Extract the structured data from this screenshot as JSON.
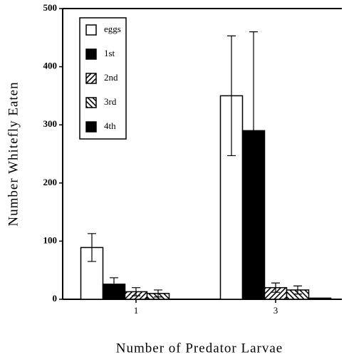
{
  "chart_data": {
    "type": "bar",
    "x_label": "Number of Predator Larvae",
    "y_label": "Number Whitefly Eaten",
    "categories": [
      "1",
      "3"
    ],
    "series": [
      {
        "name": "eggs",
        "color": "#ffffff",
        "values": [
          89,
          350
        ],
        "errors": [
          24,
          103
        ]
      },
      {
        "name": "1st",
        "color": "#000000",
        "values": [
          26,
          290
        ],
        "errors": [
          11,
          170
        ]
      },
      {
        "name": "2nd",
        "color": "#ffffff",
        "pattern": "forward",
        "values": [
          13,
          20
        ],
        "errors": [
          7,
          8
        ]
      },
      {
        "name": "3rd",
        "color": "#ffffff",
        "pattern": "backward",
        "values": [
          10,
          16
        ],
        "errors": [
          6,
          7
        ]
      },
      {
        "name": "4th",
        "color": "#000000",
        "values": [
          0,
          2
        ],
        "errors": [
          null,
          null
        ]
      }
    ],
    "ylim": [
      0,
      500
    ],
    "yticks": [
      0,
      100,
      200,
      300,
      400,
      500
    ]
  }
}
